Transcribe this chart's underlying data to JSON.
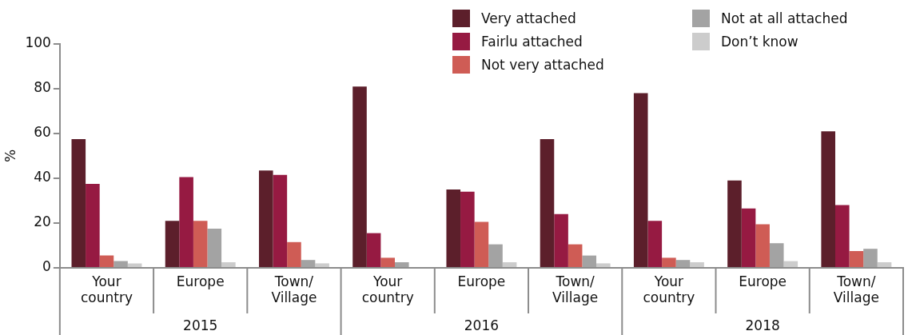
{
  "chart_data": {
    "type": "bar",
    "ylabel": "%",
    "categories": [
      "Your country",
      "Europe",
      "Town/Village",
      "Your country",
      "Europe",
      "Town/Village",
      "Your country",
      "Europe",
      "Town/Village"
    ],
    "annotations": [
      "2015",
      "2016",
      "2018"
    ],
    "series": [
      {
        "name": "Very attached",
        "color": "#5c1f2b",
        "values": [
          57.5,
          21,
          43.5,
          81,
          35,
          57.5,
          78,
          39,
          61
        ]
      },
      {
        "name": "Fairlu attached",
        "color": "#961a42",
        "values": [
          37.5,
          40.5,
          41.5,
          15.5,
          34,
          24,
          21,
          26.5,
          28
        ]
      },
      {
        "name": "Not very attached",
        "color": "#cf5c55",
        "values": [
          5.5,
          21,
          11.5,
          4.5,
          20.5,
          10.5,
          4.5,
          19.5,
          7.5
        ]
      },
      {
        "name": "Not at all attached",
        "color": "#a3a3a3",
        "values": [
          3,
          17.5,
          3.5,
          2.5,
          10.5,
          5.5,
          3.5,
          11,
          8.5
        ]
      },
      {
        "name": "Don’t know",
        "color": "#cccccc",
        "values": [
          2,
          2.5,
          2,
          0,
          2.5,
          2,
          2.5,
          3,
          2.5
        ]
      }
    ],
    "ylim": [
      0,
      100
    ],
    "yticks": [
      0,
      20,
      40,
      60,
      80,
      100
    ],
    "grid": false,
    "legend": "top right"
  }
}
